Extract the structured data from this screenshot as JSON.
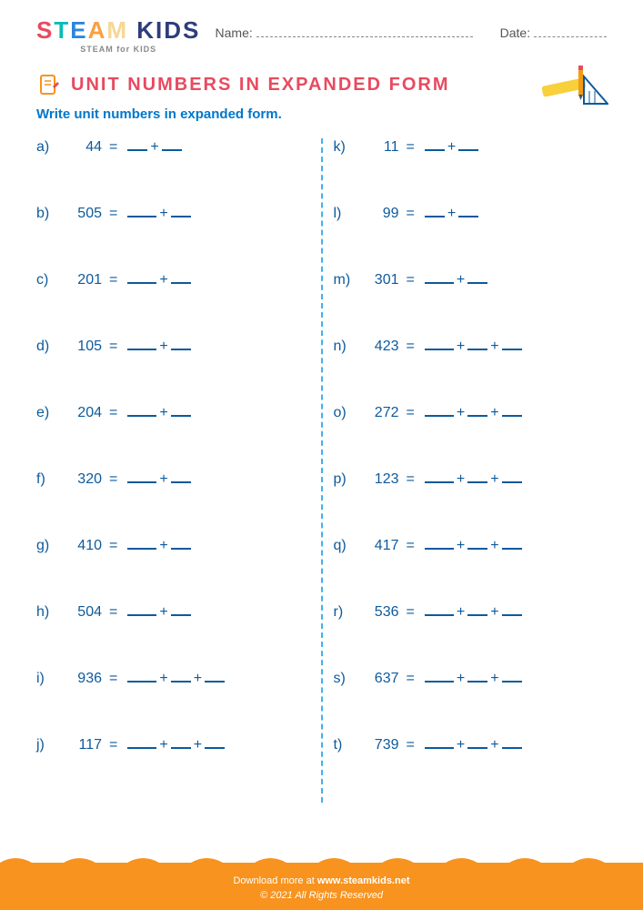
{
  "header": {
    "name_label": "Name:",
    "date_label": "Date:",
    "name_line_width": 238,
    "date_line_width": 80,
    "logo_sub": "STEAM for KIDS"
  },
  "title": "UNIT NUMBERS IN EXPANDED FORM",
  "instruction": "Write unit numbers in expanded form.",
  "colors": {
    "primary": "#0d5a9c",
    "accent": "#e84a5f",
    "link": "#0077cc",
    "footer_bg": "#f7931e",
    "divider": "#3bb3f2"
  },
  "fontsize": {
    "problem": 16,
    "title": 20,
    "instruction": 15
  },
  "left": [
    {
      "label": "a)",
      "num": "44",
      "blanks": [
        "w2",
        "w2"
      ]
    },
    {
      "label": "b)",
      "num": "505",
      "blanks": [
        "w3",
        "w2"
      ]
    },
    {
      "label": "c)",
      "num": "201",
      "blanks": [
        "w3",
        "w2"
      ]
    },
    {
      "label": "d)",
      "num": "105",
      "blanks": [
        "w3",
        "w2"
      ]
    },
    {
      "label": "e)",
      "num": "204",
      "blanks": [
        "w3",
        "w2"
      ]
    },
    {
      "label": "f)",
      "num": "320",
      "blanks": [
        "w3",
        "w2"
      ]
    },
    {
      "label": "g)",
      "num": "410",
      "blanks": [
        "w3",
        "w2"
      ]
    },
    {
      "label": "h)",
      "num": "504",
      "blanks": [
        "w3",
        "w2"
      ]
    },
    {
      "label": "i)",
      "num": "936",
      "blanks": [
        "w3",
        "w2",
        "w2"
      ]
    },
    {
      "label": "j)",
      "num": "117",
      "blanks": [
        "w3",
        "w2",
        "w2"
      ]
    }
  ],
  "right": [
    {
      "label": "k)",
      "num": "11",
      "blanks": [
        "w2",
        "w2"
      ]
    },
    {
      "label": "l)",
      "num": "99",
      "blanks": [
        "w2",
        "w2"
      ]
    },
    {
      "label": "m)",
      "num": "301",
      "blanks": [
        "w3",
        "w2"
      ]
    },
    {
      "label": "n)",
      "num": "423",
      "blanks": [
        "w3",
        "w2",
        "w2"
      ]
    },
    {
      "label": "o)",
      "num": "272",
      "blanks": [
        "w3",
        "w2",
        "w2"
      ]
    },
    {
      "label": "p)",
      "num": "123",
      "blanks": [
        "w3",
        "w2",
        "w2"
      ]
    },
    {
      "label": "q)",
      "num": "417",
      "blanks": [
        "w3",
        "w2",
        "w2"
      ]
    },
    {
      "label": "r)",
      "num": "536",
      "blanks": [
        "w3",
        "w2",
        "w2"
      ]
    },
    {
      "label": "s)",
      "num": "637",
      "blanks": [
        "w3",
        "w2",
        "w2"
      ]
    },
    {
      "label": "t)",
      "num": "739",
      "blanks": [
        "w3",
        "w2",
        "w2"
      ]
    }
  ],
  "footer": {
    "prefix": "Download more at ",
    "url": "www.steamkids.net",
    "copyright": "© 2021 All Rights Reserved"
  }
}
